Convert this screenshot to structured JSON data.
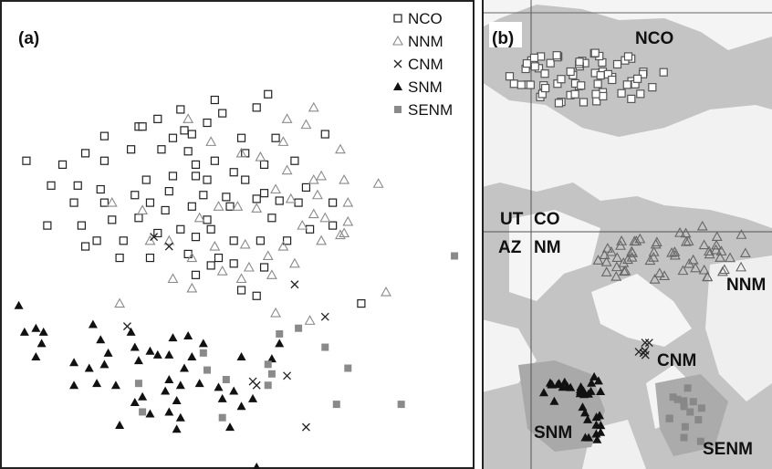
{
  "chart_data": [
    {
      "type": "scatter",
      "panel_label": "(a)",
      "axes_ticks": "none",
      "legend_placement": "top-right",
      "series": [
        {
          "name": "NCO",
          "marker": "open-square",
          "color": "#222222",
          "points": [
            [
              6.9,
              9.85
            ],
            [
              5.5,
              9.7
            ],
            [
              6.6,
              9.5
            ],
            [
              4.6,
              9.45
            ],
            [
              5.7,
              9.35
            ],
            [
              4.0,
              9.2
            ],
            [
              5.3,
              9.1
            ],
            [
              3.5,
              9.0
            ],
            [
              3.6,
              9.0
            ],
            [
              4.7,
              8.9
            ],
            [
              4.9,
              8.8
            ],
            [
              2.6,
              8.75
            ],
            [
              4.4,
              8.7
            ],
            [
              6.2,
              8.7
            ],
            [
              7.1,
              8.7
            ],
            [
              8.4,
              8.8
            ],
            [
              0.55,
              8.1
            ],
            [
              1.5,
              8.0
            ],
            [
              2.1,
              8.3
            ],
            [
              3.3,
              8.4
            ],
            [
              2.6,
              8.1
            ],
            [
              4.1,
              8.4
            ],
            [
              4.8,
              8.35
            ],
            [
              5.5,
              8.1
            ],
            [
              6.3,
              8.3
            ],
            [
              5.0,
              8.0
            ],
            [
              6.0,
              7.8
            ],
            [
              7.6,
              8.1
            ],
            [
              6.8,
              8.0
            ],
            [
              1.2,
              7.45
            ],
            [
              1.9,
              7.45
            ],
            [
              3.7,
              7.6
            ],
            [
              4.4,
              7.7
            ],
            [
              5.0,
              7.7
            ],
            [
              5.3,
              7.6
            ],
            [
              6.3,
              7.6
            ],
            [
              2.5,
              7.35
            ],
            [
              3.4,
              7.2
            ],
            [
              4.3,
              7.3
            ],
            [
              5.2,
              7.2
            ],
            [
              5.8,
              7.15
            ],
            [
              6.8,
              7.25
            ],
            [
              7.2,
              7.05
            ],
            [
              7.9,
              7.4
            ],
            [
              1.8,
              7.0
            ],
            [
              2.6,
              7.0
            ],
            [
              3.8,
              7.0
            ],
            [
              4.2,
              6.8
            ],
            [
              4.9,
              6.9
            ],
            [
              5.9,
              6.9
            ],
            [
              6.6,
              7.1
            ],
            [
              7.7,
              7.0
            ],
            [
              8.6,
              7.0
            ],
            [
              1.1,
              6.4
            ],
            [
              2.0,
              6.4
            ],
            [
              2.8,
              6.55
            ],
            [
              3.5,
              6.6
            ],
            [
              4.6,
              6.3
            ],
            [
              5.3,
              6.55
            ],
            [
              7.0,
              6.6
            ],
            [
              2.4,
              6.0
            ],
            [
              3.1,
              6.0
            ],
            [
              4.0,
              6.2
            ],
            [
              5.0,
              6.1
            ],
            [
              6.0,
              6.0
            ],
            [
              6.7,
              6.0
            ],
            [
              5.4,
              6.3
            ],
            [
              7.4,
              6.0
            ],
            [
              8.0,
              6.3
            ],
            [
              8.6,
              6.4
            ],
            [
              2.1,
              5.85
            ],
            [
              4.8,
              5.65
            ],
            [
              3.8,
              5.55
            ],
            [
              5.6,
              5.55
            ],
            [
              6.0,
              5.4
            ],
            [
              5.4,
              5.35
            ],
            [
              3.0,
              5.55
            ],
            [
              6.8,
              5.3
            ],
            [
              5.0,
              5.1
            ],
            [
              6.2,
              4.7
            ],
            [
              6.6,
              4.55
            ],
            [
              9.35,
              4.35
            ]
          ]
        },
        {
          "name": "NNM",
          "marker": "open-triangle",
          "color": "#8a8a8a",
          "points": [
            [
              8.1,
              9.5
            ],
            [
              7.4,
              9.2
            ],
            [
              7.9,
              9.05
            ],
            [
              4.8,
              9.2
            ],
            [
              5.4,
              8.6
            ],
            [
              6.2,
              8.3
            ],
            [
              6.7,
              8.2
            ],
            [
              7.3,
              8.6
            ],
            [
              8.8,
              8.4
            ],
            [
              7.4,
              7.85
            ],
            [
              7.1,
              7.35
            ],
            [
              8.1,
              7.6
            ],
            [
              8.3,
              7.7
            ],
            [
              8.9,
              7.6
            ],
            [
              9.8,
              7.5
            ],
            [
              7.5,
              7.1
            ],
            [
              8.2,
              7.2
            ],
            [
              9.0,
              7.0
            ],
            [
              2.8,
              7.0
            ],
            [
              3.6,
              6.8
            ],
            [
              5.6,
              6.9
            ],
            [
              6.1,
              6.9
            ],
            [
              6.6,
              6.85
            ],
            [
              7.8,
              6.4
            ],
            [
              8.1,
              6.7
            ],
            [
              8.4,
              6.6
            ],
            [
              9.0,
              6.5
            ],
            [
              8.9,
              6.2
            ],
            [
              5.1,
              6.6
            ],
            [
              4.3,
              6.0
            ],
            [
              3.8,
              6.0
            ],
            [
              5.5,
              5.85
            ],
            [
              6.3,
              5.9
            ],
            [
              6.9,
              5.6
            ],
            [
              7.3,
              5.85
            ],
            [
              8.3,
              6.0
            ],
            [
              8.8,
              6.15
            ],
            [
              4.9,
              5.55
            ],
            [
              5.7,
              5.2
            ],
            [
              6.4,
              5.3
            ],
            [
              7.0,
              5.1
            ],
            [
              7.6,
              5.4
            ],
            [
              4.4,
              5.0
            ],
            [
              4.9,
              4.75
            ],
            [
              6.2,
              5.0
            ],
            [
              3.0,
              4.35
            ],
            [
              10.0,
              4.65
            ],
            [
              8.0,
              3.9
            ],
            [
              7.1,
              4.1
            ]
          ]
        },
        {
          "name": "CNM",
          "marker": "x",
          "color": "#222222",
          "points": [
            [
              3.9,
              6.1
            ],
            [
              4.3,
              5.85
            ],
            [
              7.6,
              4.85
            ],
            [
              8.4,
              4.0
            ],
            [
              3.2,
              3.75
            ],
            [
              7.4,
              2.45
            ],
            [
              6.5,
              2.3
            ],
            [
              6.6,
              2.2
            ],
            [
              7.9,
              1.1
            ]
          ]
        },
        {
          "name": "SNM",
          "marker": "filled-triangle",
          "color": "#111111",
          "points": [
            [
              0.35,
              4.3
            ],
            [
              0.5,
              3.6
            ],
            [
              0.8,
              3.7
            ],
            [
              1.0,
              3.6
            ],
            [
              0.95,
              3.3
            ],
            [
              2.3,
              3.8
            ],
            [
              3.3,
              3.6
            ],
            [
              0.8,
              2.95
            ],
            [
              2.5,
              3.4
            ],
            [
              2.7,
              3.05
            ],
            [
              3.4,
              3.2
            ],
            [
              4.4,
              3.45
            ],
            [
              4.8,
              3.5
            ],
            [
              5.2,
              3.3
            ],
            [
              7.2,
              3.3
            ],
            [
              1.8,
              2.8
            ],
            [
              2.2,
              2.65
            ],
            [
              2.6,
              2.75
            ],
            [
              3.5,
              2.85
            ],
            [
              3.8,
              3.1
            ],
            [
              4.0,
              3.0
            ],
            [
              4.3,
              3.0
            ],
            [
              4.9,
              2.95
            ],
            [
              6.2,
              2.95
            ],
            [
              7.0,
              2.9
            ],
            [
              4.7,
              2.65
            ],
            [
              1.8,
              2.2
            ],
            [
              2.4,
              2.25
            ],
            [
              2.9,
              2.2
            ],
            [
              4.3,
              2.35
            ],
            [
              4.6,
              2.2
            ],
            [
              4.2,
              2.05
            ],
            [
              5.1,
              2.25
            ],
            [
              5.6,
              2.15
            ],
            [
              6.0,
              2.05
            ],
            [
              6.2,
              1.65
            ],
            [
              3.6,
              1.9
            ],
            [
              3.4,
              1.75
            ],
            [
              4.5,
              1.8
            ],
            [
              5.7,
              1.85
            ],
            [
              6.5,
              1.85
            ],
            [
              3.8,
              1.45
            ],
            [
              4.3,
              1.5
            ],
            [
              4.6,
              1.35
            ],
            [
              3.0,
              1.15
            ],
            [
              4.5,
              1.05
            ],
            [
              5.9,
              1.1
            ],
            [
              6.6,
              0.05
            ]
          ]
        },
        {
          "name": "SENM",
          "marker": "filled-square",
          "color": "#8a8a8a",
          "points": [
            [
              11.8,
              5.6
            ],
            [
              7.7,
              3.7
            ],
            [
              7.2,
              3.55
            ],
            [
              8.4,
              3.2
            ],
            [
              5.2,
              3.05
            ],
            [
              5.3,
              2.6
            ],
            [
              6.9,
              2.75
            ],
            [
              9.0,
              2.65
            ],
            [
              7.0,
              2.5
            ],
            [
              5.8,
              2.35
            ],
            [
              3.5,
              2.25
            ],
            [
              6.9,
              2.2
            ],
            [
              8.7,
              1.7
            ],
            [
              10.4,
              1.7
            ],
            [
              5.7,
              1.35
            ],
            [
              3.6,
              1.5
            ]
          ]
        }
      ]
    },
    {
      "type": "map",
      "panel_label": "(b)",
      "region_labels": [
        "NCO",
        "UT",
        "CO",
        "AZ",
        "NM",
        "NNM",
        "CNM",
        "SNM",
        "SENM"
      ]
    }
  ]
}
